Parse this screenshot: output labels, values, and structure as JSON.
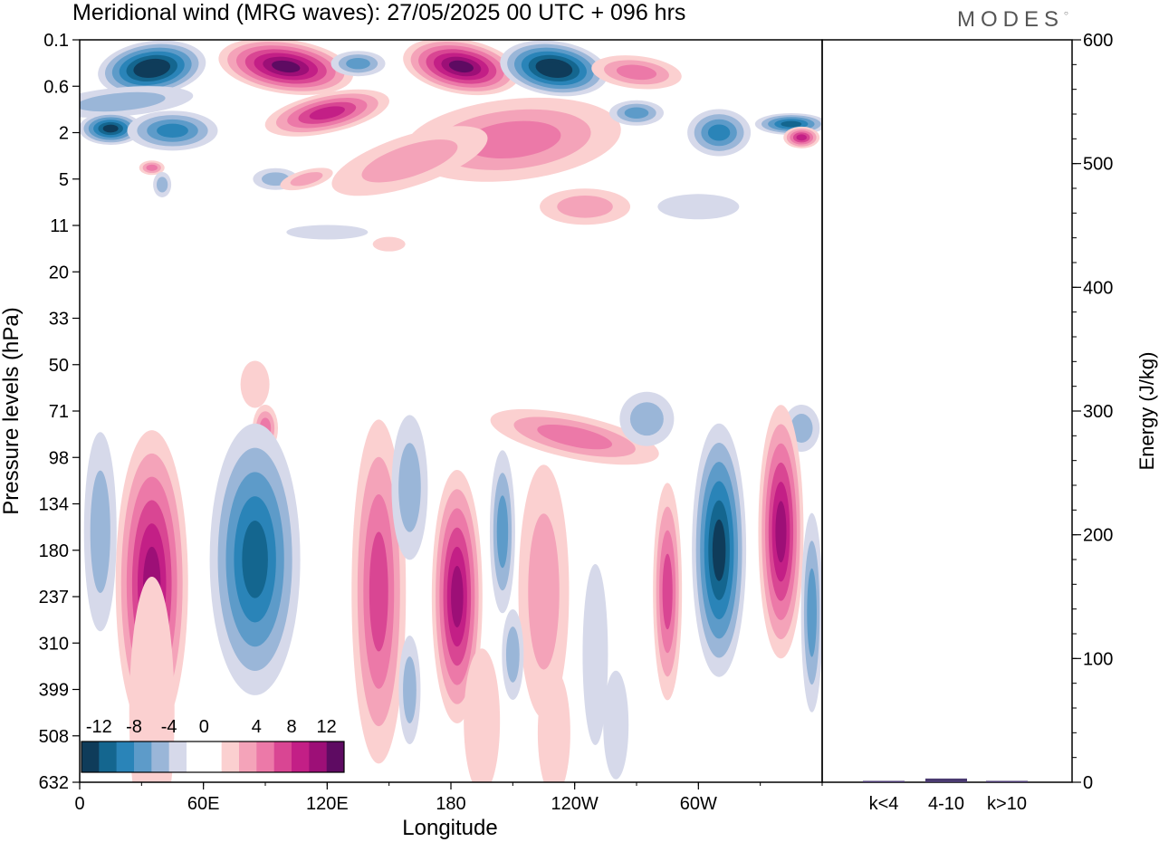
{
  "header": {
    "title": "Meridional wind (MRG waves):  27/05/2025  00 UTC  + 096 hrs",
    "logo": "MODES"
  },
  "chart_data": [
    {
      "type": "heatmap",
      "title": "Meridional wind (MRG waves):  27/05/2025  00 UTC  + 096 hrs",
      "xlabel": "Longitude",
      "ylabel": "Pressure levels (hPa)",
      "x_ticks": [
        "0",
        "60E",
        "120E",
        "180",
        "120W",
        "60W"
      ],
      "x_tick_values": [
        0,
        60,
        120,
        180,
        240,
        300
      ],
      "xlim": [
        0,
        360
      ],
      "y_ticks": [
        "0.1",
        "0.6",
        "2",
        "5",
        "11",
        "20",
        "33",
        "50",
        "71",
        "98",
        "134",
        "180",
        "237",
        "310",
        "399",
        "508",
        "632"
      ],
      "y_scale": "pressure levels (inverted)",
      "colorbar": {
        "labels": [
          "-12",
          "-8",
          "-4",
          "0",
          "4",
          "8",
          "12"
        ],
        "colors": [
          "#0f3c5a",
          "#14668f",
          "#2a84b8",
          "#5d9bc9",
          "#9ab6d8",
          "#d6d9ea",
          "#ffffff",
          "#ffffff",
          "#fbd0d0",
          "#f4a3b9",
          "#ec79a8",
          "#d94693",
          "#c31f86",
          "#9d0f77",
          "#5e0b62"
        ],
        "placement": "bottom-left"
      },
      "features": [
        {
          "lon": 35,
          "level": 0.3,
          "value": -14
        },
        {
          "lon": 100,
          "level": 0.3,
          "value": 14
        },
        {
          "lon": 185,
          "level": 0.3,
          "value": 14
        },
        {
          "lon": 230,
          "level": 0.3,
          "value": -14
        },
        {
          "lon": 35,
          "level": 237,
          "value": 10
        },
        {
          "lon": 85,
          "level": 180,
          "value": -10
        },
        {
          "lon": 145,
          "level": 180,
          "value": 6
        },
        {
          "lon": 183,
          "level": 237,
          "value": 10
        },
        {
          "lon": 310,
          "level": 180,
          "value": -10
        },
        {
          "lon": 340,
          "level": 160,
          "value": 10
        }
      ]
    },
    {
      "type": "bar",
      "ylabel": "Energy (J/kg)",
      "categories": [
        "k<4",
        "4-10",
        "k>10"
      ],
      "values": [
        1,
        3,
        0
      ],
      "ylim": [
        0,
        600
      ],
      "y_ticks": [
        "0",
        "100",
        "200",
        "300",
        "400",
        "500",
        "600"
      ],
      "colors": {
        "bar": "#4a3a70"
      }
    }
  ]
}
